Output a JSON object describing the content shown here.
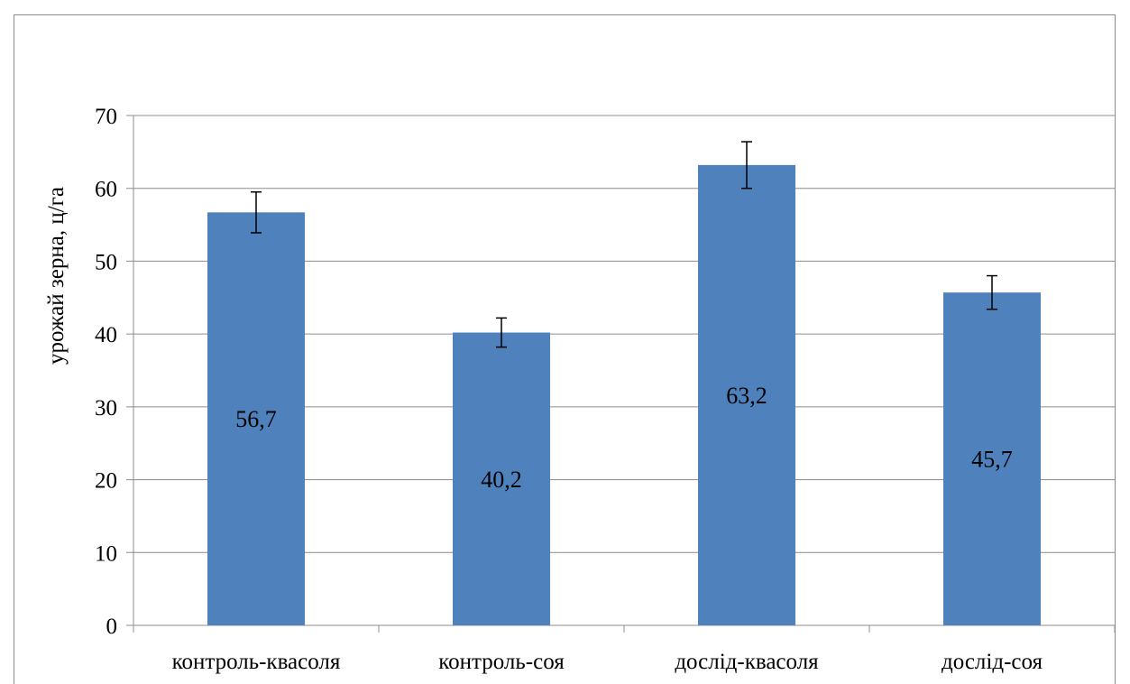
{
  "chart_data": {
    "type": "bar",
    "title": "",
    "xlabel": "",
    "ylabel": "урожай зерна, ц/га",
    "categories": [
      "контроль-квасоля",
      "контроль-соя",
      "дослід-квасоля",
      "дослід-соя"
    ],
    "values": [
      56.7,
      40.2,
      63.2,
      45.7
    ],
    "data_labels": [
      "56,7",
      "40,2",
      "63,2",
      "45,7"
    ],
    "error_bars": [
      2.8,
      2.0,
      3.2,
      2.3
    ],
    "ylim": [
      0,
      70
    ],
    "yticks": [
      0,
      10,
      20,
      30,
      40,
      50,
      60,
      70
    ],
    "grid": true,
    "legend": "none",
    "colors": {
      "bar": "#4f81bd",
      "grid": "#8c8c8c",
      "error_bar": "#000000"
    }
  }
}
